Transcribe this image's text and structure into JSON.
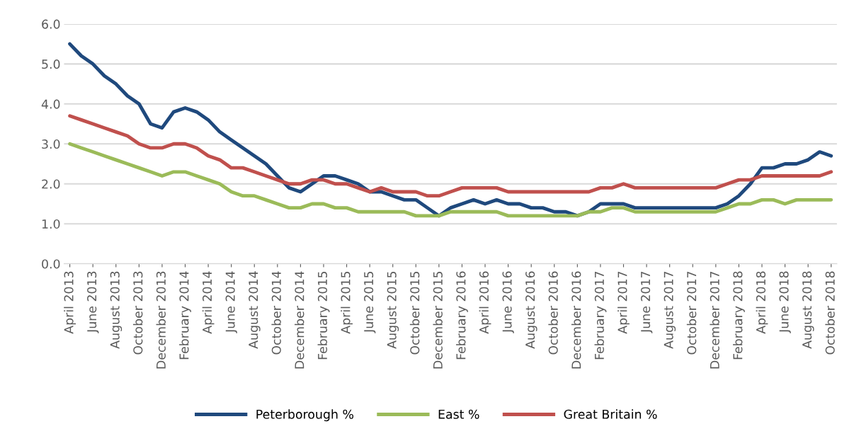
{
  "chart_data": {
    "type": "line",
    "categories": [
      "April 2013",
      null,
      "June 2013",
      null,
      "August 2013",
      null,
      "October 2013",
      null,
      "December 2013",
      null,
      "February 2014",
      null,
      "April 2014",
      null,
      "June 2014",
      null,
      "August 2014",
      null,
      "October 2014",
      null,
      "December 2014",
      null,
      "February 2015",
      null,
      "April 2015",
      null,
      "June 2015",
      null,
      "August 2015",
      null,
      "October 2015",
      null,
      "December 2015",
      null,
      "February 2016",
      null,
      "April 2016",
      null,
      "June 2016",
      null,
      "August 2016",
      null,
      "October 2016",
      null,
      "December 2016",
      null,
      "February 2017",
      null,
      "April 2017",
      null,
      "June 2017",
      null,
      "August 2017",
      null,
      "October 2017",
      null,
      "December 2017",
      null,
      "February 2018",
      null,
      "April 2018",
      null,
      "June 2018",
      null,
      "August 2018",
      null,
      "October 2018"
    ],
    "series": [
      {
        "name": "Peterborough %",
        "color": "#1f497d",
        "values": [
          5.5,
          5.2,
          5.0,
          4.7,
          4.5,
          4.2,
          4.0,
          3.5,
          3.4,
          3.8,
          3.9,
          3.8,
          3.6,
          3.3,
          3.1,
          2.9,
          2.7,
          2.5,
          2.2,
          1.9,
          1.8,
          2.0,
          2.2,
          2.2,
          2.1,
          2.0,
          1.8,
          1.8,
          1.7,
          1.6,
          1.6,
          1.4,
          1.2,
          1.4,
          1.5,
          1.6,
          1.5,
          1.6,
          1.5,
          1.5,
          1.4,
          1.4,
          1.3,
          1.3,
          1.2,
          1.3,
          1.5,
          1.5,
          1.5,
          1.4,
          1.4,
          1.4,
          1.4,
          1.4,
          1.4,
          1.4,
          1.4,
          1.5,
          1.7,
          2.0,
          2.4,
          2.4,
          2.5,
          2.5,
          2.6,
          2.8,
          2.7
        ]
      },
      {
        "name": "East %",
        "color": "#9bbb59",
        "values": [
          3.0,
          2.9,
          2.8,
          2.7,
          2.6,
          2.5,
          2.4,
          2.3,
          2.2,
          2.3,
          2.3,
          2.2,
          2.1,
          2.0,
          1.8,
          1.7,
          1.7,
          1.6,
          1.5,
          1.4,
          1.4,
          1.5,
          1.5,
          1.4,
          1.4,
          1.3,
          1.3,
          1.3,
          1.3,
          1.3,
          1.2,
          1.2,
          1.2,
          1.3,
          1.3,
          1.3,
          1.3,
          1.3,
          1.2,
          1.2,
          1.2,
          1.2,
          1.2,
          1.2,
          1.2,
          1.3,
          1.3,
          1.4,
          1.4,
          1.3,
          1.3,
          1.3,
          1.3,
          1.3,
          1.3,
          1.3,
          1.3,
          1.4,
          1.5,
          1.5,
          1.6,
          1.6,
          1.5,
          1.6,
          1.6,
          1.6,
          1.6
        ]
      },
      {
        "name": "Great Britain %",
        "color": "#c0504d",
        "values": [
          3.7,
          3.6,
          3.5,
          3.4,
          3.3,
          3.2,
          3.0,
          2.9,
          2.9,
          3.0,
          3.0,
          2.9,
          2.7,
          2.6,
          2.4,
          2.4,
          2.3,
          2.2,
          2.1,
          2.0,
          2.0,
          2.1,
          2.1,
          2.0,
          2.0,
          1.9,
          1.8,
          1.9,
          1.8,
          1.8,
          1.8,
          1.7,
          1.7,
          1.8,
          1.9,
          1.9,
          1.9,
          1.9,
          1.8,
          1.8,
          1.8,
          1.8,
          1.8,
          1.8,
          1.8,
          1.8,
          1.9,
          1.9,
          2.0,
          1.9,
          1.9,
          1.9,
          1.9,
          1.9,
          1.9,
          1.9,
          1.9,
          2.0,
          2.1,
          2.1,
          2.2,
          2.2,
          2.2,
          2.2,
          2.2,
          2.2,
          2.3
        ]
      }
    ],
    "ylim": [
      0,
      6
    ],
    "yticks": [
      {
        "value": 0,
        "label": "0.0"
      },
      {
        "value": 1,
        "label": "1.0"
      },
      {
        "value": 2,
        "label": "2.0"
      },
      {
        "value": 3,
        "label": "3.0"
      },
      {
        "value": 4,
        "label": "4.0"
      },
      {
        "value": 5,
        "label": "5.0"
      },
      {
        "value": 6,
        "label": "6.0"
      }
    ],
    "grid": "y",
    "legend": "bottom",
    "marker": "none",
    "line_style": "solid"
  }
}
